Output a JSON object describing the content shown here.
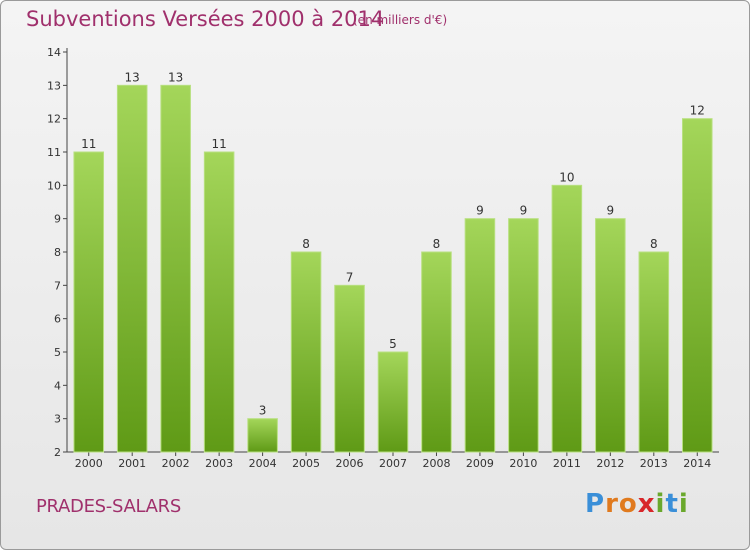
{
  "header": {
    "title": "Subventions Versées 2000 à 2014",
    "unit_note": "(en milliers d'€)"
  },
  "footer": {
    "place": "PRADES-SALARS",
    "logo_letters": [
      "P",
      "r",
      "o",
      "x",
      "i",
      "t",
      "i"
    ]
  },
  "colors": {
    "title": "#a0306c",
    "bar_top": "#a4d65a",
    "bar_bottom": "#5f9a16",
    "logo": [
      "#3a8fd8",
      "#e07a1e",
      "#e07a1e",
      "#d8262a",
      "#6aa82c",
      "#3a8fd8",
      "#6aa82c"
    ]
  },
  "chart_data": {
    "type": "bar",
    "categories": [
      "2000",
      "2001",
      "2002",
      "2003",
      "2004",
      "2005",
      "2006",
      "2007",
      "2008",
      "2009",
      "2010",
      "2011",
      "2012",
      "2013",
      "2014"
    ],
    "values": [
      11,
      13,
      13,
      11,
      3,
      8,
      7,
      5,
      8,
      9,
      9,
      10,
      9,
      8,
      12
    ],
    "title": "Subventions Versées 2000 à 2014",
    "ylim": [
      2,
      14
    ],
    "yticks": [
      2,
      3,
      4,
      5,
      6,
      7,
      8,
      9,
      10,
      11,
      12,
      13,
      14
    ],
    "grid": false,
    "legend": "none"
  }
}
